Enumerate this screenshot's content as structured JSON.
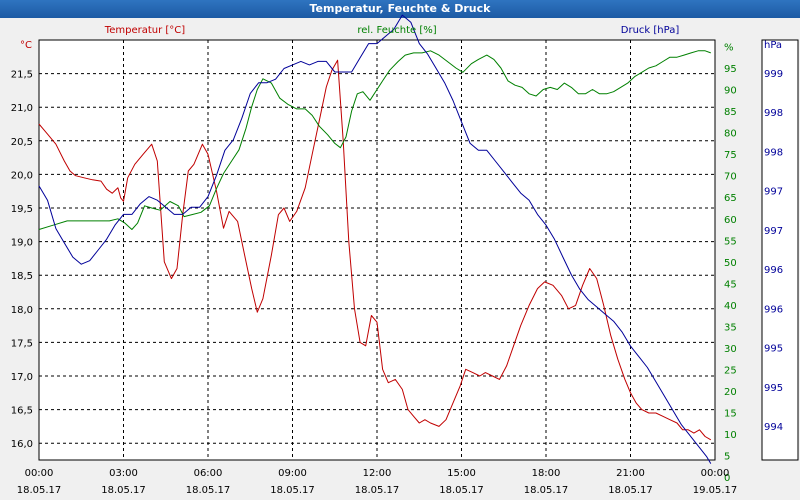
{
  "window": {
    "title": "Temperatur, Feuchte & Druck"
  },
  "colors": {
    "temperature": "#c00000",
    "humidity": "#008000",
    "pressure": "#000099",
    "grid": "#000000"
  },
  "chart_data": {
    "type": "line",
    "title": "Temperatur, Feuchte & Druck",
    "grid": true,
    "x_ticks": [
      {
        "time": "00:00",
        "date": "18.05.17"
      },
      {
        "time": "03:00",
        "date": "18.05.17"
      },
      {
        "time": "06:00",
        "date": "18.05.17"
      },
      {
        "time": "09:00",
        "date": "18.05.17"
      },
      {
        "time": "12:00",
        "date": "18.05.17"
      },
      {
        "time": "15:00",
        "date": "18.05.17"
      },
      {
        "time": "18:00",
        "date": "18.05.17"
      },
      {
        "time": "21:00",
        "date": "18.05.17"
      },
      {
        "time": "00:00",
        "date": "19.05.17"
      }
    ],
    "x_unit": "hours",
    "x_range": [
      0,
      24
    ],
    "axes": {
      "temperature": {
        "header": "Temperatur [°C]",
        "unit_label": "°C",
        "range": [
          15.75,
          22.0
        ],
        "ticks": [
          "21,5",
          "21,0",
          "20,5",
          "20,0",
          "19,5",
          "19,0",
          "18,5",
          "18,0",
          "17,5",
          "17,0",
          "16,5",
          "16,0"
        ]
      },
      "humidity": {
        "header": "rel. Feuchte [%]",
        "range": [
          0,
          97.5
        ],
        "ticks": [
          "%",
          "95",
          "90",
          "85",
          "80",
          "75",
          "70",
          "65",
          "60",
          "55",
          "50",
          "45",
          "40",
          "35",
          "30",
          "25",
          "20",
          "15",
          "10",
          "5",
          "0"
        ]
      },
      "pressure": {
        "header": "Druck [hPa]",
        "unit_label": "hPa",
        "range": [
          993.5,
          999.4
        ],
        "ticks": [
          "999",
          "998",
          "998",
          "997",
          "997",
          "996",
          "996",
          "995",
          "995",
          "994"
        ]
      }
    },
    "series": [
      {
        "name": "Temperatur [°C]",
        "axis": "temperature",
        "color": "#c00000",
        "points": [
          [
            0,
            20.75
          ],
          [
            0.3,
            20.6
          ],
          [
            0.6,
            20.45
          ],
          [
            0.9,
            20.2
          ],
          [
            1.1,
            20.05
          ],
          [
            1.3,
            19.98
          ],
          [
            1.6,
            19.95
          ],
          [
            1.9,
            19.92
          ],
          [
            2.2,
            19.9
          ],
          [
            2.4,
            19.78
          ],
          [
            2.6,
            19.72
          ],
          [
            2.8,
            19.8
          ],
          [
            2.9,
            19.65
          ],
          [
            3.0,
            19.6
          ],
          [
            3.15,
            19.95
          ],
          [
            3.4,
            20.15
          ],
          [
            3.7,
            20.3
          ],
          [
            4.0,
            20.45
          ],
          [
            4.2,
            20.2
          ],
          [
            4.45,
            18.7
          ],
          [
            4.7,
            18.45
          ],
          [
            4.9,
            18.6
          ],
          [
            5.1,
            19.4
          ],
          [
            5.3,
            20.05
          ],
          [
            5.5,
            20.15
          ],
          [
            5.8,
            20.45
          ],
          [
            6.0,
            20.3
          ],
          [
            6.3,
            19.75
          ],
          [
            6.55,
            19.2
          ],
          [
            6.75,
            19.45
          ],
          [
            7.05,
            19.3
          ],
          [
            7.3,
            18.8
          ],
          [
            7.55,
            18.3
          ],
          [
            7.75,
            17.95
          ],
          [
            7.95,
            18.15
          ],
          [
            8.25,
            18.8
          ],
          [
            8.5,
            19.4
          ],
          [
            8.7,
            19.5
          ],
          [
            8.9,
            19.3
          ],
          [
            9.15,
            19.45
          ],
          [
            9.45,
            19.8
          ],
          [
            9.7,
            20.3
          ],
          [
            9.95,
            20.8
          ],
          [
            10.2,
            21.3
          ],
          [
            10.4,
            21.55
          ],
          [
            10.6,
            21.7
          ],
          [
            10.8,
            20.5
          ],
          [
            11.0,
            19.0
          ],
          [
            11.2,
            18.0
          ],
          [
            11.4,
            17.5
          ],
          [
            11.6,
            17.45
          ],
          [
            11.8,
            17.9
          ],
          [
            12.0,
            17.8
          ],
          [
            12.2,
            17.1
          ],
          [
            12.4,
            16.9
          ],
          [
            12.65,
            16.95
          ],
          [
            12.9,
            16.8
          ],
          [
            13.1,
            16.5
          ],
          [
            13.3,
            16.4
          ],
          [
            13.5,
            16.3
          ],
          [
            13.7,
            16.35
          ],
          [
            13.9,
            16.3
          ],
          [
            14.2,
            16.25
          ],
          [
            14.45,
            16.35
          ],
          [
            14.7,
            16.6
          ],
          [
            14.95,
            16.85
          ],
          [
            15.15,
            17.1
          ],
          [
            15.4,
            17.05
          ],
          [
            15.65,
            17.0
          ],
          [
            15.85,
            17.05
          ],
          [
            16.1,
            17.0
          ],
          [
            16.35,
            16.95
          ],
          [
            16.6,
            17.15
          ],
          [
            16.85,
            17.45
          ],
          [
            17.1,
            17.75
          ],
          [
            17.4,
            18.05
          ],
          [
            17.7,
            18.3
          ],
          [
            17.95,
            18.4
          ],
          [
            18.25,
            18.35
          ],
          [
            18.55,
            18.2
          ],
          [
            18.8,
            18.0
          ],
          [
            19.05,
            18.05
          ],
          [
            19.3,
            18.35
          ],
          [
            19.55,
            18.6
          ],
          [
            19.8,
            18.45
          ],
          [
            20.05,
            18.05
          ],
          [
            20.3,
            17.6
          ],
          [
            20.55,
            17.25
          ],
          [
            20.8,
            16.95
          ],
          [
            21.0,
            16.75
          ],
          [
            21.2,
            16.6
          ],
          [
            21.4,
            16.5
          ],
          [
            21.65,
            16.45
          ],
          [
            21.9,
            16.45
          ],
          [
            22.15,
            16.4
          ],
          [
            22.4,
            16.35
          ],
          [
            22.65,
            16.3
          ],
          [
            22.85,
            16.2
          ],
          [
            23.05,
            16.2
          ],
          [
            23.25,
            16.15
          ],
          [
            23.45,
            16.2
          ],
          [
            23.65,
            16.1
          ],
          [
            23.85,
            16.05
          ]
        ]
      },
      {
        "name": "rel. Feuchte [%]",
        "axis": "humidity",
        "color": "#008000",
        "points": [
          [
            0,
            53.5
          ],
          [
            0.5,
            54.5
          ],
          [
            1.0,
            55.5
          ],
          [
            1.5,
            55.5
          ],
          [
            2.0,
            55.5
          ],
          [
            2.5,
            55.5
          ],
          [
            2.8,
            56
          ],
          [
            3.05,
            55
          ],
          [
            3.3,
            53.5
          ],
          [
            3.5,
            55
          ],
          [
            3.75,
            59
          ],
          [
            4.0,
            58.5
          ],
          [
            4.3,
            58
          ],
          [
            4.65,
            60
          ],
          [
            4.95,
            59
          ],
          [
            5.15,
            56.5
          ],
          [
            5.45,
            57
          ],
          [
            5.75,
            57.5
          ],
          [
            6.05,
            59
          ],
          [
            6.3,
            63
          ],
          [
            6.55,
            66.5
          ],
          [
            6.85,
            69.5
          ],
          [
            7.1,
            72
          ],
          [
            7.35,
            77
          ],
          [
            7.55,
            82
          ],
          [
            7.75,
            86
          ],
          [
            7.95,
            88.5
          ],
          [
            8.25,
            87.5
          ],
          [
            8.55,
            84
          ],
          [
            8.85,
            82.5
          ],
          [
            9.15,
            81.5
          ],
          [
            9.45,
            81.5
          ],
          [
            9.7,
            80
          ],
          [
            9.95,
            77.5
          ],
          [
            10.25,
            75.5
          ],
          [
            10.5,
            73.5
          ],
          [
            10.7,
            72.5
          ],
          [
            10.9,
            75
          ],
          [
            11.1,
            81
          ],
          [
            11.3,
            85
          ],
          [
            11.5,
            85.5
          ],
          [
            11.75,
            83.5
          ],
          [
            12.0,
            86
          ],
          [
            12.2,
            88
          ],
          [
            12.45,
            90.5
          ],
          [
            12.75,
            92.5
          ],
          [
            13.0,
            94
          ],
          [
            13.3,
            94.5
          ],
          [
            13.6,
            94.5
          ],
          [
            13.9,
            95
          ],
          [
            14.2,
            94
          ],
          [
            14.5,
            92.5
          ],
          [
            14.8,
            91
          ],
          [
            15.05,
            90
          ],
          [
            15.35,
            92
          ],
          [
            15.6,
            93
          ],
          [
            15.9,
            94
          ],
          [
            16.15,
            93
          ],
          [
            16.4,
            91
          ],
          [
            16.65,
            88
          ],
          [
            16.9,
            87
          ],
          [
            17.15,
            86.5
          ],
          [
            17.4,
            85
          ],
          [
            17.65,
            84.5
          ],
          [
            17.9,
            86
          ],
          [
            18.15,
            86.5
          ],
          [
            18.4,
            86
          ],
          [
            18.65,
            87.5
          ],
          [
            18.9,
            86.5
          ],
          [
            19.15,
            85
          ],
          [
            19.4,
            85
          ],
          [
            19.65,
            86
          ],
          [
            19.9,
            85
          ],
          [
            20.15,
            85
          ],
          [
            20.4,
            85.5
          ],
          [
            20.65,
            86.5
          ],
          [
            20.9,
            87.5
          ],
          [
            21.15,
            89
          ],
          [
            21.4,
            90
          ],
          [
            21.65,
            91
          ],
          [
            21.9,
            91.5
          ],
          [
            22.15,
            92.5
          ],
          [
            22.4,
            93.5
          ],
          [
            22.65,
            93.5
          ],
          [
            22.9,
            94
          ],
          [
            23.15,
            94.5
          ],
          [
            23.4,
            95
          ],
          [
            23.65,
            95
          ],
          [
            23.85,
            94.5
          ]
        ]
      },
      {
        "name": "Druck [hPa]",
        "axis": "pressure",
        "color": "#000099",
        "points": [
          [
            0,
            997.35
          ],
          [
            0.3,
            997.15
          ],
          [
            0.6,
            996.75
          ],
          [
            0.9,
            996.55
          ],
          [
            1.2,
            996.35
          ],
          [
            1.5,
            996.25
          ],
          [
            1.8,
            996.3
          ],
          [
            2.1,
            996.45
          ],
          [
            2.4,
            996.6
          ],
          [
            2.7,
            996.8
          ],
          [
            3.0,
            996.95
          ],
          [
            3.3,
            996.95
          ],
          [
            3.6,
            997.1
          ],
          [
            3.9,
            997.2
          ],
          [
            4.2,
            997.15
          ],
          [
            4.5,
            997.05
          ],
          [
            4.8,
            996.95
          ],
          [
            5.1,
            996.95
          ],
          [
            5.4,
            997.05
          ],
          [
            5.7,
            997.05
          ],
          [
            6.0,
            997.2
          ],
          [
            6.3,
            997.5
          ],
          [
            6.6,
            997.85
          ],
          [
            6.9,
            998.0
          ],
          [
            7.2,
            998.3
          ],
          [
            7.5,
            998.65
          ],
          [
            7.8,
            998.8
          ],
          [
            8.1,
            998.8
          ],
          [
            8.4,
            998.85
          ],
          [
            8.7,
            999.0
          ],
          [
            9.0,
            999.05
          ],
          [
            9.3,
            999.1
          ],
          [
            9.6,
            999.05
          ],
          [
            9.9,
            999.1
          ],
          [
            10.2,
            999.1
          ],
          [
            10.5,
            998.95
          ],
          [
            10.8,
            998.95
          ],
          [
            11.1,
            998.95
          ],
          [
            11.4,
            999.15
          ],
          [
            11.7,
            999.35
          ],
          [
            12.0,
            999.35
          ],
          [
            12.3,
            999.45
          ],
          [
            12.6,
            999.55
          ],
          [
            12.9,
            999.75
          ],
          [
            13.2,
            999.65
          ],
          [
            13.5,
            999.35
          ],
          [
            13.8,
            999.2
          ],
          [
            14.1,
            999.0
          ],
          [
            14.4,
            998.8
          ],
          [
            14.7,
            998.55
          ],
          [
            15.0,
            998.25
          ],
          [
            15.3,
            997.95
          ],
          [
            15.6,
            997.85
          ],
          [
            15.9,
            997.85
          ],
          [
            16.2,
            997.7
          ],
          [
            16.5,
            997.55
          ],
          [
            16.8,
            997.4
          ],
          [
            17.1,
            997.25
          ],
          [
            17.4,
            997.15
          ],
          [
            17.7,
            996.95
          ],
          [
            18.0,
            996.8
          ],
          [
            18.3,
            996.6
          ],
          [
            18.6,
            996.35
          ],
          [
            18.9,
            996.1
          ],
          [
            19.2,
            995.9
          ],
          [
            19.5,
            995.75
          ],
          [
            19.8,
            995.65
          ],
          [
            20.1,
            995.55
          ],
          [
            20.4,
            995.45
          ],
          [
            20.7,
            995.3
          ],
          [
            21.0,
            995.1
          ],
          [
            21.3,
            994.95
          ],
          [
            21.6,
            994.8
          ],
          [
            21.9,
            994.6
          ],
          [
            22.2,
            994.4
          ],
          [
            22.5,
            994.2
          ],
          [
            22.8,
            994.0
          ],
          [
            23.1,
            993.85
          ],
          [
            23.4,
            993.7
          ],
          [
            23.7,
            993.55
          ],
          [
            23.85,
            993.45
          ]
        ]
      }
    ]
  }
}
